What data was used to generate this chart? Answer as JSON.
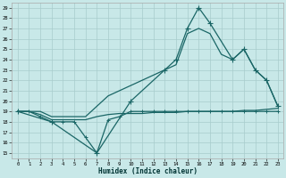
{
  "title": "",
  "xlabel": "Humidex (Indice chaleur)",
  "bg_color": "#c8e8e8",
  "grid_color": "#a8cccc",
  "line_color": "#1a6666",
  "xlim": [
    -0.5,
    23.5
  ],
  "ylim": [
    14.5,
    29.5
  ],
  "yticks": [
    15,
    16,
    17,
    18,
    19,
    20,
    21,
    22,
    23,
    24,
    25,
    26,
    27,
    28,
    29
  ],
  "xticks": [
    0,
    1,
    2,
    3,
    4,
    5,
    6,
    7,
    8,
    9,
    10,
    11,
    12,
    13,
    14,
    15,
    16,
    17,
    18,
    19,
    20,
    21,
    22,
    23
  ],
  "line1_x": [
    0,
    1,
    2,
    3,
    4,
    5,
    6,
    7,
    8,
    9,
    10,
    11,
    12,
    13,
    14,
    15,
    16,
    17,
    18,
    19,
    20,
    21,
    22,
    23
  ],
  "line1_y": [
    19.0,
    19.0,
    18.7,
    18.2,
    18.2,
    18.2,
    18.2,
    18.5,
    18.7,
    18.8,
    18.8,
    18.8,
    18.9,
    18.9,
    18.9,
    19.0,
    19.0,
    19.0,
    19.0,
    19.0,
    19.1,
    19.1,
    19.2,
    19.3
  ],
  "line2_x": [
    0,
    1,
    2,
    3,
    4,
    5,
    6,
    7,
    8,
    9,
    10,
    11,
    12,
    13,
    14,
    15,
    16,
    17,
    18,
    19,
    20,
    21,
    22,
    23
  ],
  "line2_y": [
    19.0,
    19.0,
    19.0,
    18.5,
    18.5,
    18.5,
    18.5,
    19.5,
    20.5,
    21.0,
    21.5,
    22.0,
    22.5,
    23.0,
    23.5,
    26.5,
    27.0,
    26.5,
    24.5,
    24.0,
    25.0,
    23.0,
    22.0,
    19.5
  ],
  "line3_x": [
    0,
    1,
    2,
    3,
    4,
    5,
    6,
    7,
    8,
    9,
    10,
    11,
    12,
    13,
    14,
    15,
    16,
    17,
    18,
    19,
    20,
    21,
    22,
    23
  ],
  "line3_y": [
    19.0,
    19.0,
    18.5,
    18.0,
    18.0,
    18.0,
    16.5,
    15.0,
    18.2,
    18.5,
    19.0,
    19.0,
    19.0,
    19.0,
    19.0,
    19.0,
    19.0,
    19.0,
    19.0,
    19.0,
    19.0,
    19.0,
    19.0,
    19.0
  ],
  "line4_x": [
    0,
    3,
    7,
    10,
    13,
    14,
    15,
    16,
    17,
    19,
    20,
    21,
    22,
    23
  ],
  "line4_y": [
    19.0,
    18.0,
    15.0,
    20.0,
    23.0,
    24.0,
    27.0,
    29.0,
    27.5,
    24.0,
    25.0,
    23.0,
    22.0,
    19.5
  ]
}
